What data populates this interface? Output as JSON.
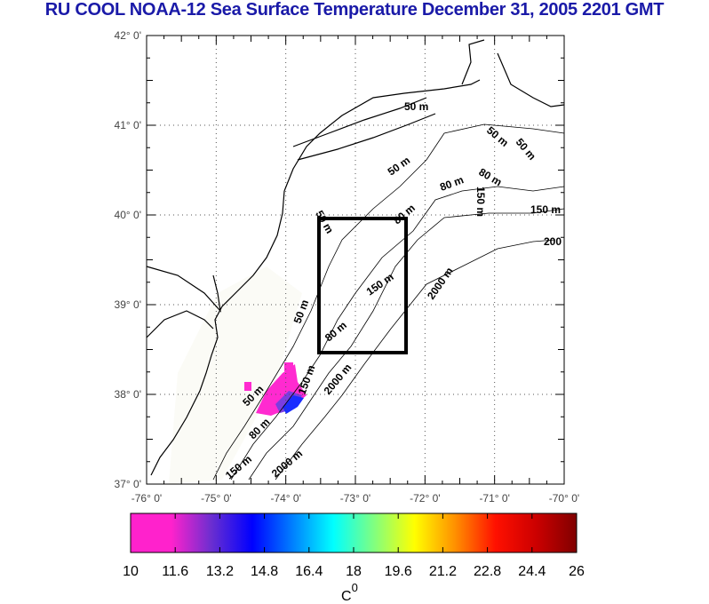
{
  "title": "RU COOL  NOAA-12 Sea Surface Temperature December 31, 2005 2201 GMT",
  "map": {
    "lon_range": [
      -76,
      -70
    ],
    "lat_range": [
      37,
      42
    ],
    "lat_labels": [
      "42° 0'",
      "41° 0'",
      "40° 0'",
      "39° 0'",
      "38° 0'",
      "37° 0'"
    ],
    "lon_labels": [
      "-76° 0'",
      "-75° 0'",
      "-74° 0'",
      "-73° 0'",
      "-72° 0'",
      "-71° 0'",
      "-70° 0'"
    ],
    "study_box": {
      "lon": [
        -73.5,
        -72.25
      ],
      "lat": [
        38.5,
        40.0
      ]
    },
    "contour_labels": [
      "50 m",
      "50 m",
      "50 m",
      "50 m",
      "80 m",
      "80 m",
      "150 m",
      "150 m",
      "200",
      "80 m",
      "50 m",
      "150 m",
      "2000 m",
      "50 m",
      "80 m",
      "150 m",
      "2000 m",
      "50 m",
      "80 m",
      "150 m",
      "2000 m"
    ]
  },
  "colorbar": {
    "ticks": [
      "10",
      "11.6",
      "13.2",
      "14.8",
      "16.4",
      "18",
      "19.6",
      "21.2",
      "22.8",
      "24.4",
      "26"
    ],
    "range": [
      10,
      26
    ],
    "unit_label": "C",
    "unit_sup": "0",
    "colors": [
      "#ff22cc",
      "#ff22cc",
      "#6a2ed0",
      "#0000ff",
      "#0080ff",
      "#00ffff",
      "#80ff80",
      "#ffff00",
      "#ff9000",
      "#ff1000",
      "#cc0000",
      "#800000"
    ]
  }
}
